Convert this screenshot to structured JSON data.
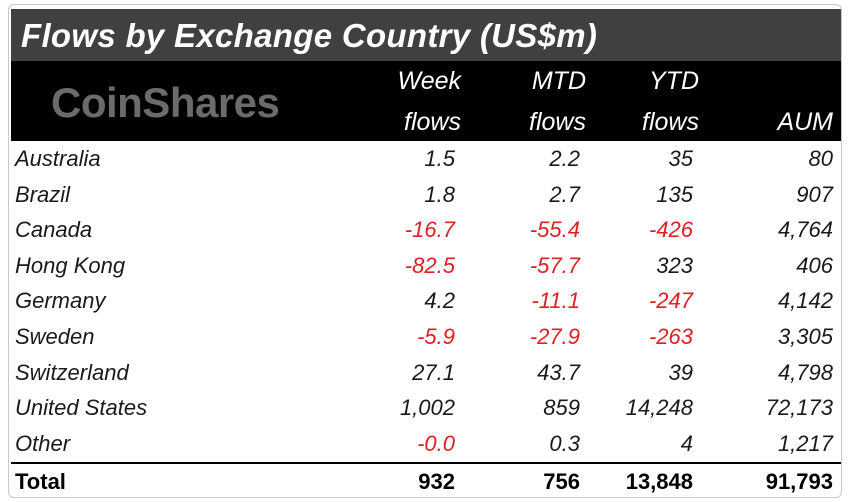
{
  "chart_data": {
    "type": "table",
    "title": "Flows by Exchange Country (US$m)",
    "brand": "CoinShares",
    "columns": [
      {
        "line1": "Week",
        "line2": "flows"
      },
      {
        "line1": "MTD",
        "line2": "flows"
      },
      {
        "line1": "YTD",
        "line2": "flows"
      },
      {
        "line1": "",
        "line2": "AUM"
      }
    ],
    "rows": [
      {
        "name": "Australia",
        "values": [
          "1.5",
          "2.2",
          "35",
          "80"
        ]
      },
      {
        "name": "Brazil",
        "values": [
          "1.8",
          "2.7",
          "135",
          "907"
        ]
      },
      {
        "name": "Canada",
        "values": [
          "-16.7",
          "-55.4",
          "-426",
          "4,764"
        ]
      },
      {
        "name": "Hong Kong",
        "values": [
          "-82.5",
          "-57.7",
          "323",
          "406"
        ]
      },
      {
        "name": "Germany",
        "values": [
          "4.2",
          "-11.1",
          "-247",
          "4,142"
        ]
      },
      {
        "name": "Sweden",
        "values": [
          "-5.9",
          "-27.9",
          "-263",
          "3,305"
        ]
      },
      {
        "name": "Switzerland",
        "values": [
          "27.1",
          "43.7",
          "39",
          "4,798"
        ]
      },
      {
        "name": "United States",
        "values": [
          "1,002",
          "859",
          "14,248",
          "72,173"
        ]
      },
      {
        "name": "Other",
        "values": [
          "-0.0",
          "0.3",
          "4",
          "1,217"
        ]
      }
    ],
    "total": {
      "name": "Total",
      "values": [
        "932",
        "756",
        "13,848",
        "91,793"
      ]
    }
  },
  "colors": {
    "negative": "#e02020",
    "title_bg": "#404040",
    "header_bg": "#000000"
  }
}
